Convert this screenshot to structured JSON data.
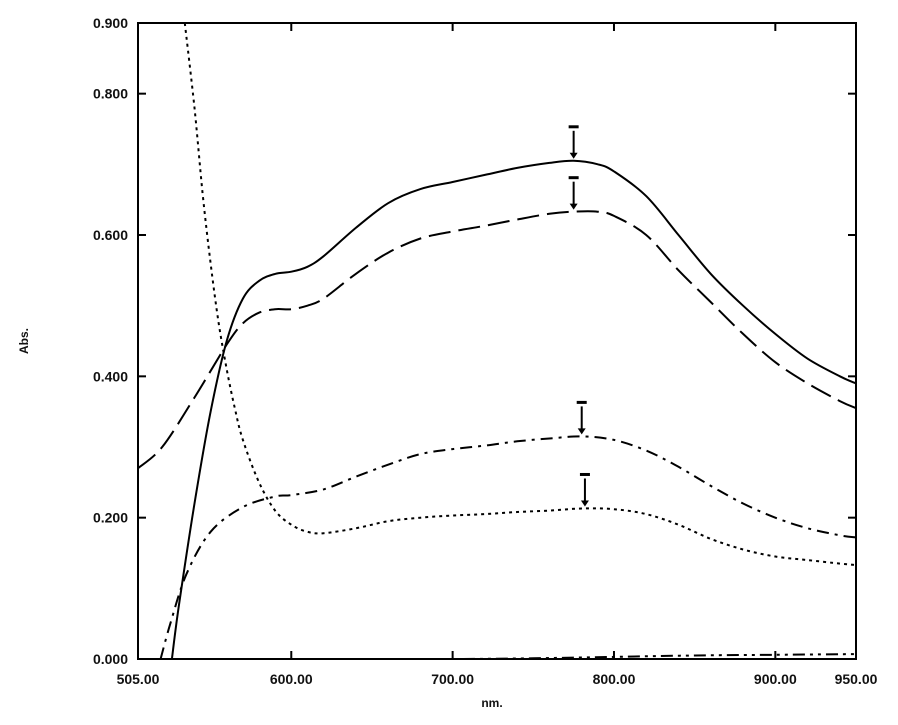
{
  "chart_data": {
    "type": "line",
    "title": "",
    "xlabel": "nm.",
    "ylabel": "Abs.",
    "xlim": [
      505,
      950
    ],
    "ylim": [
      0.0,
      0.9
    ],
    "x_ticks": [
      {
        "value": 505,
        "label": "505.00"
      },
      {
        "value": 600,
        "label": "600.00"
      },
      {
        "value": 700,
        "label": "700.00"
      },
      {
        "value": 800,
        "label": "800.00"
      },
      {
        "value": 900,
        "label": "900.00"
      },
      {
        "value": 950,
        "label": "950.00"
      }
    ],
    "y_ticks": [
      {
        "value": 0.0,
        "label": "0.000"
      },
      {
        "value": 0.2,
        "label": "0.200"
      },
      {
        "value": 0.4,
        "label": "0.400"
      },
      {
        "value": 0.6,
        "label": "0.600"
      },
      {
        "value": 0.8,
        "label": "0.800"
      },
      {
        "value": 0.9,
        "label": "0.900"
      }
    ],
    "grid": false,
    "legend": "none",
    "series": [
      {
        "style": "solid",
        "x": [
          526,
          530,
          540,
          550,
          560,
          570,
          580,
          590,
          600,
          610,
          620,
          640,
          660,
          680,
          700,
          720,
          740,
          760,
          775,
          790,
          800,
          820,
          840,
          860,
          880,
          900,
          920,
          940,
          950
        ],
        "y": [
          0.0,
          0.07,
          0.22,
          0.35,
          0.45,
          0.51,
          0.535,
          0.545,
          0.548,
          0.555,
          0.57,
          0.61,
          0.645,
          0.665,
          0.675,
          0.685,
          0.695,
          0.702,
          0.705,
          0.7,
          0.69,
          0.655,
          0.6,
          0.545,
          0.5,
          0.46,
          0.425,
          0.4,
          0.39
        ],
        "marker": {
          "x": 775,
          "y": 0.705
        }
      },
      {
        "style": "long-dash",
        "x": [
          505,
          520,
          540,
          560,
          570,
          580,
          590,
          600,
          610,
          620,
          640,
          660,
          680,
          700,
          720,
          740,
          760,
          775,
          790,
          800,
          820,
          840,
          860,
          880,
          900,
          920,
          940,
          950
        ],
        "y": [
          0.27,
          0.3,
          0.37,
          0.445,
          0.475,
          0.49,
          0.495,
          0.495,
          0.5,
          0.51,
          0.545,
          0.575,
          0.595,
          0.605,
          0.613,
          0.622,
          0.63,
          0.633,
          0.633,
          0.627,
          0.6,
          0.55,
          0.505,
          0.46,
          0.42,
          0.39,
          0.365,
          0.355
        ],
        "marker": {
          "x": 775,
          "y": 0.633
        }
      },
      {
        "style": "dash-dot",
        "x": [
          519,
          525,
          535,
          550,
          570,
          590,
          600,
          620,
          640,
          660,
          680,
          700,
          720,
          740,
          760,
          780,
          800,
          820,
          840,
          860,
          880,
          900,
          920,
          940,
          950
        ],
        "y": [
          0.0,
          0.05,
          0.12,
          0.18,
          0.215,
          0.23,
          0.232,
          0.24,
          0.258,
          0.275,
          0.29,
          0.297,
          0.302,
          0.308,
          0.312,
          0.315,
          0.31,
          0.295,
          0.272,
          0.245,
          0.22,
          0.2,
          0.185,
          0.175,
          0.172
        ],
        "marker": {
          "x": 780,
          "y": 0.315
        }
      },
      {
        "style": "dotted",
        "x": [
          534,
          540,
          545,
          550,
          555,
          560,
          565,
          570,
          580,
          590,
          600,
          610,
          620,
          640,
          660,
          680,
          700,
          720,
          740,
          760,
          780,
          800,
          820,
          840,
          860,
          880,
          900,
          920,
          940,
          950
        ],
        "y": [
          0.9,
          0.78,
          0.66,
          0.56,
          0.475,
          0.41,
          0.355,
          0.31,
          0.25,
          0.21,
          0.19,
          0.18,
          0.178,
          0.185,
          0.195,
          0.2,
          0.203,
          0.205,
          0.208,
          0.21,
          0.213,
          0.212,
          0.205,
          0.19,
          0.17,
          0.155,
          0.145,
          0.14,
          0.135,
          0.133
        ],
        "marker": {
          "x": 782,
          "y": 0.213
        }
      },
      {
        "style": "dash-dot-dot",
        "x": [
          645,
          700,
          750,
          800,
          850,
          900,
          950
        ],
        "y": [
          0.0,
          0.0,
          0.001,
          0.003,
          0.005,
          0.006,
          0.007
        ]
      }
    ]
  }
}
